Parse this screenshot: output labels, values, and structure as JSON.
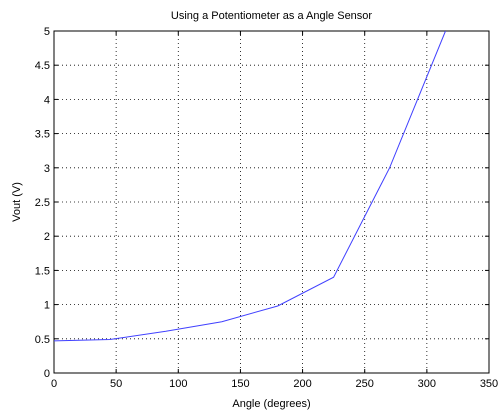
{
  "chart_data": {
    "type": "line",
    "title": "Using a Potentiometer as a Angle Sensor",
    "xlabel": "Angle (degrees)",
    "ylabel": "Vout (V)",
    "xlim": [
      0,
      350
    ],
    "ylim": [
      0,
      5
    ],
    "xticks": [
      "0",
      "50",
      "100",
      "150",
      "200",
      "250",
      "300",
      "350"
    ],
    "yticks": [
      "0",
      "0.5",
      "1",
      "1.5",
      "2",
      "2.5",
      "3",
      "3.5",
      "4",
      "4.5",
      "5"
    ],
    "grid": true,
    "series": [
      {
        "color": "#4040ff",
        "x": [
          0,
          45,
          90,
          135,
          180,
          225,
          270,
          315
        ],
        "y": [
          0.47,
          0.49,
          0.61,
          0.75,
          0.98,
          1.4,
          3.0,
          5.0
        ]
      }
    ]
  }
}
